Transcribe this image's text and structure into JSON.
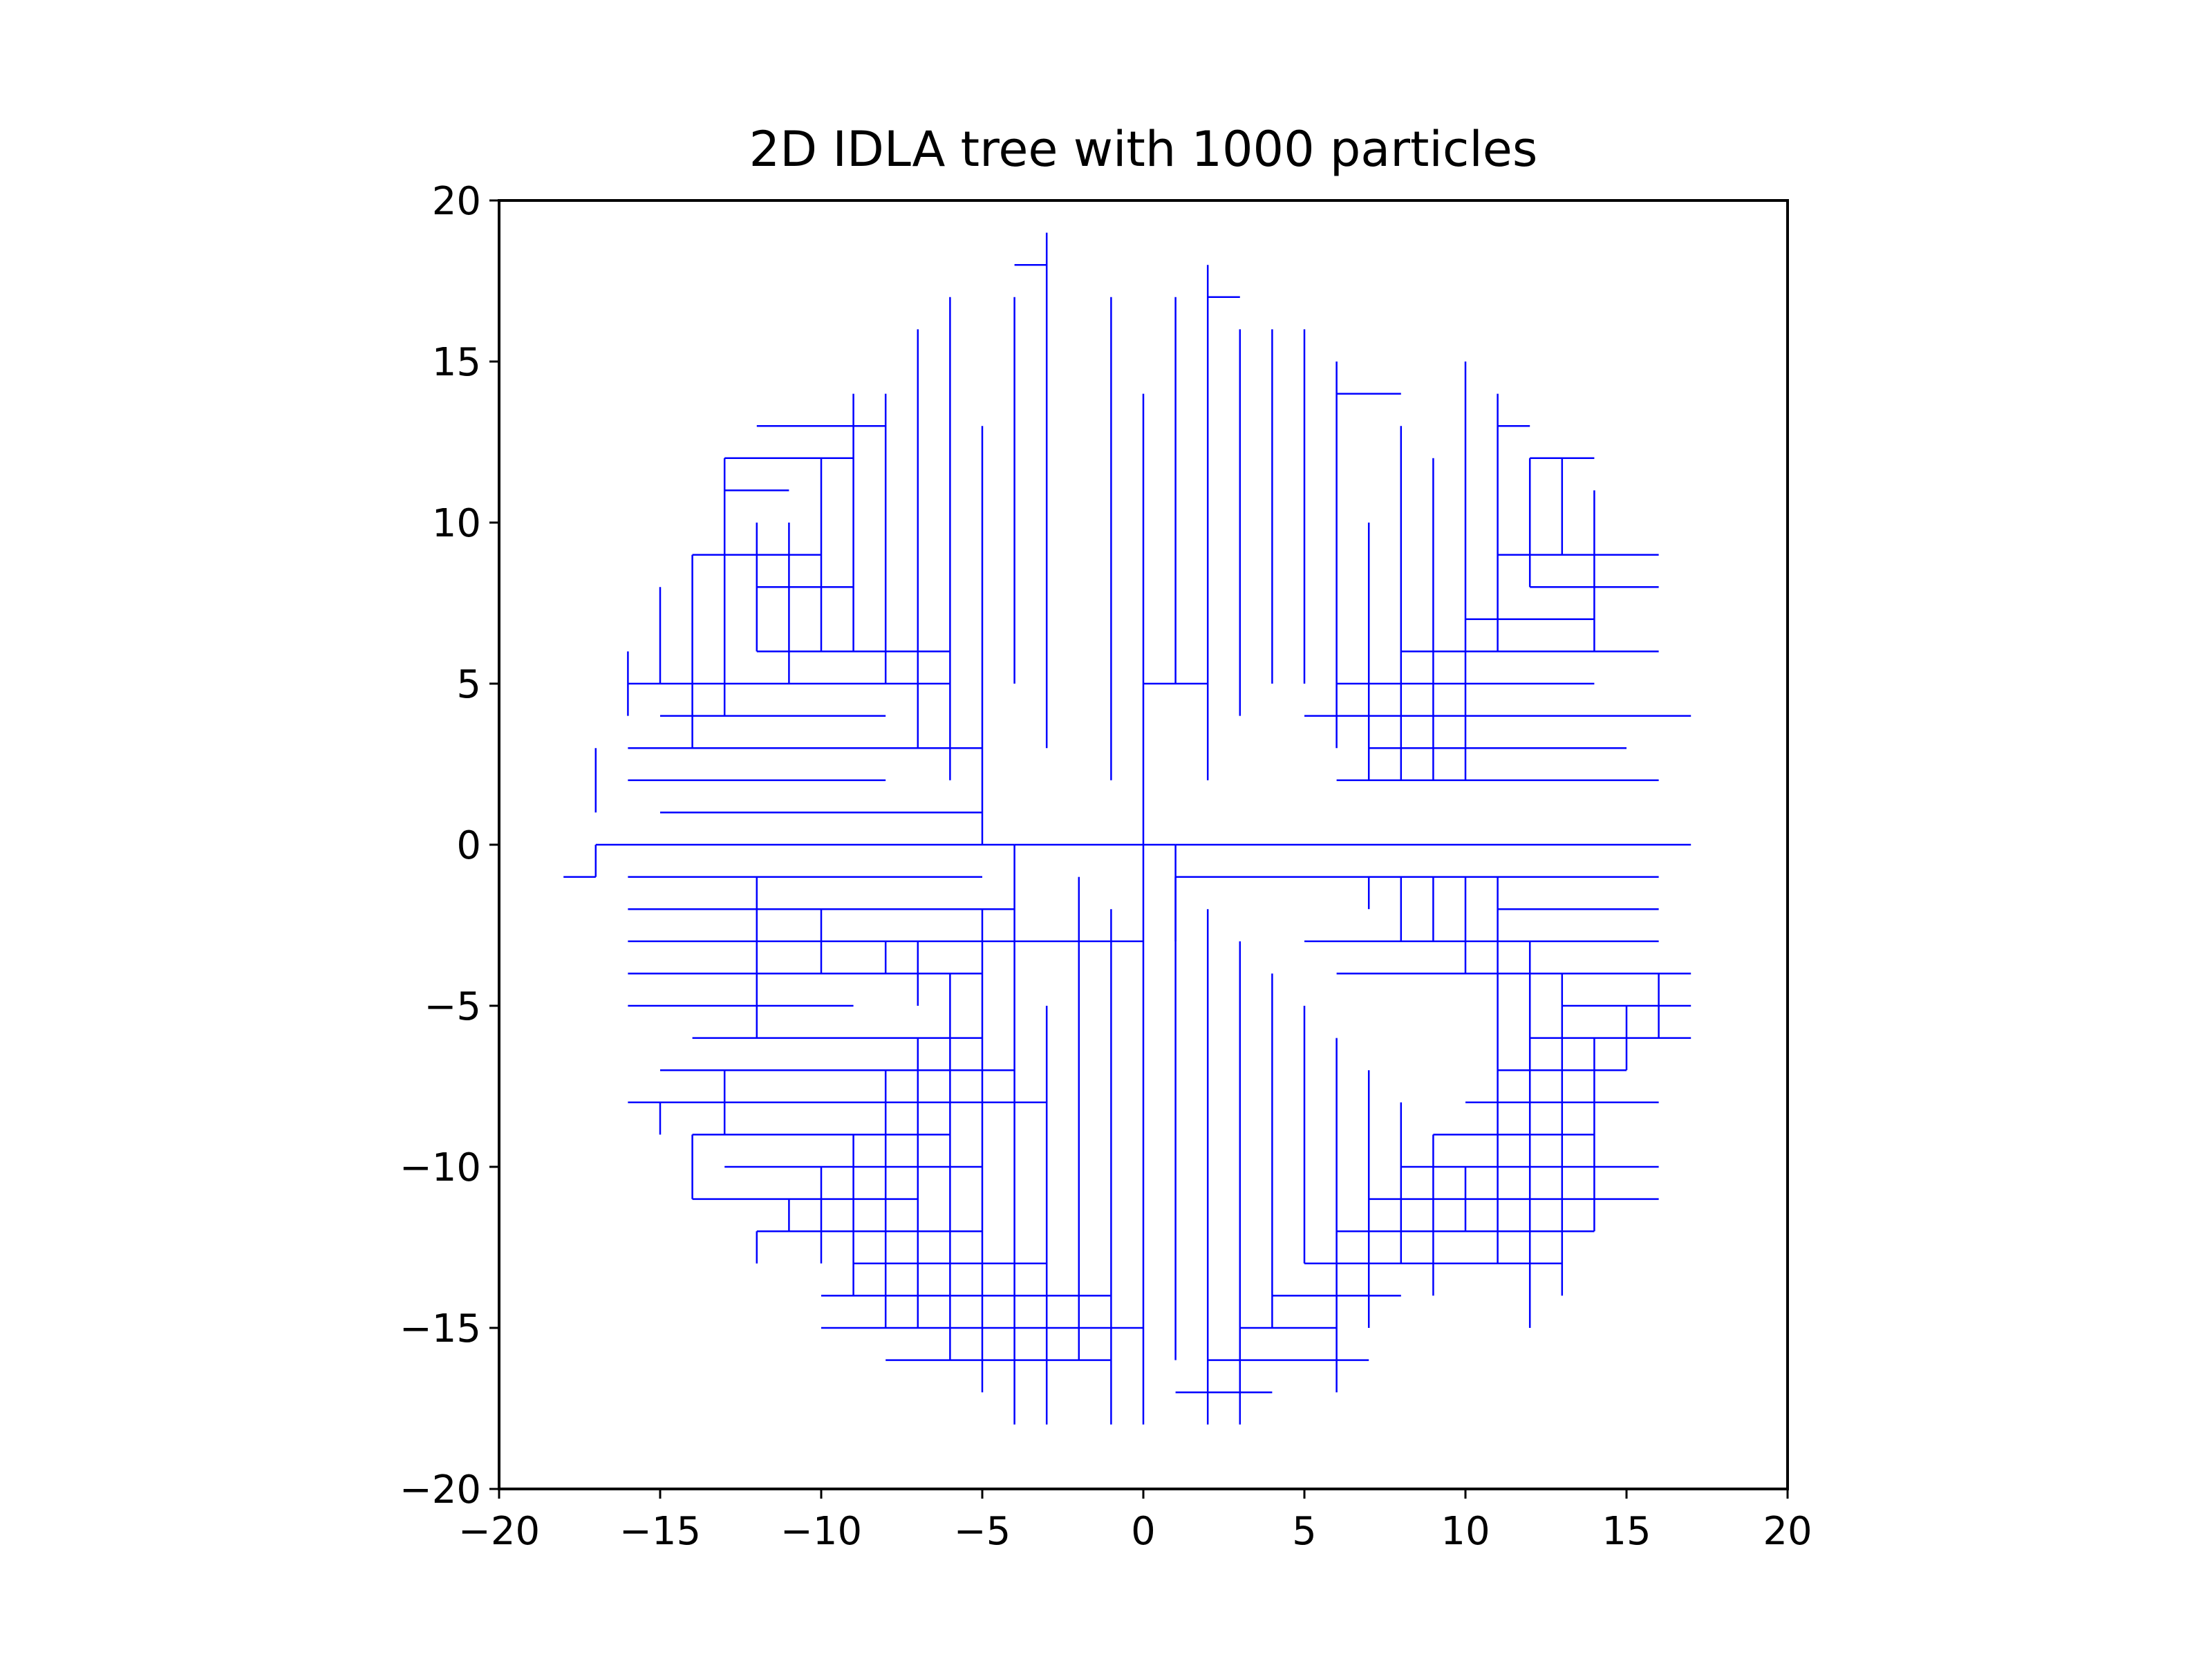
{
  "chart_data": {
    "type": "line",
    "title": "2D IDLA tree with 1000 particles",
    "xlabel": "",
    "ylabel": "",
    "xlim": [
      -20,
      20
    ],
    "ylim": [
      -20,
      20
    ],
    "xticks": [
      -20,
      -15,
      -10,
      -5,
      0,
      5,
      10,
      15,
      20
    ],
    "yticks": [
      -20,
      -15,
      -10,
      -5,
      0,
      5,
      10,
      15,
      20
    ],
    "xtick_labels": [
      "−20",
      "−15",
      "−10",
      "−5",
      "0",
      "5",
      "10",
      "15",
      "20"
    ],
    "ytick_labels": [
      "−20",
      "−15",
      "−10",
      "−5",
      "0",
      "5",
      "10",
      "15",
      "20"
    ],
    "grid": false,
    "legend": "none",
    "edge_color": "#0000ff",
    "series": [
      {
        "values_note": "tree edges between lattice points [x1,y1,x2,y2]",
        "edges": [
          [
            0,
            0,
            0,
            -18
          ],
          [
            0,
            0,
            -4,
            0
          ],
          [
            0,
            0,
            0,
            14
          ],
          [
            0,
            0,
            1,
            0
          ],
          [
            1,
            0,
            1,
            -3
          ],
          [
            1,
            0,
            17,
            0
          ],
          [
            0,
            -3,
            -5,
            -3
          ],
          [
            -4,
            0,
            -4,
            -18
          ],
          [
            -3,
            -5,
            -3,
            -18
          ],
          [
            -5,
            0,
            -5,
            13
          ],
          [
            -4,
            5,
            -4,
            17
          ],
          [
            -3,
            3,
            -3,
            19
          ],
          [
            -3,
            18,
            -4,
            18
          ],
          [
            -1,
            2,
            -1,
            17
          ],
          [
            0,
            5,
            2,
            5
          ],
          [
            1,
            5,
            1,
            17
          ],
          [
            2,
            2,
            2,
            18
          ],
          [
            2,
            17,
            3,
            17
          ],
          [
            3,
            4,
            3,
            16
          ],
          [
            4,
            5,
            4,
            16
          ],
          [
            5,
            5,
            5,
            16
          ],
          [
            6,
            3,
            6,
            15
          ],
          [
            6,
            14,
            8,
            14
          ],
          [
            7,
            2,
            7,
            10
          ],
          [
            8,
            2,
            8,
            13
          ],
          [
            9,
            2,
            9,
            12
          ],
          [
            10,
            2,
            10,
            15
          ],
          [
            11,
            6,
            11,
            14
          ],
          [
            12,
            8,
            12,
            12
          ],
          [
            12,
            12,
            14,
            12
          ],
          [
            13,
            9,
            13,
            12
          ],
          [
            11,
            9,
            16,
            9
          ],
          [
            12,
            7,
            14,
            7
          ],
          [
            14,
            6,
            14,
            11
          ],
          [
            12,
            8,
            16,
            8
          ],
          [
            -6,
            2,
            -6,
            17
          ],
          [
            -7,
            3,
            -7,
            16
          ],
          [
            -8,
            5,
            -8,
            14
          ],
          [
            -9,
            6,
            -9,
            14
          ],
          [
            -10,
            6,
            -10,
            12
          ],
          [
            -11,
            5,
            -11,
            10
          ],
          [
            -12,
            6,
            -12,
            10
          ],
          [
            -13,
            4,
            -13,
            12
          ],
          [
            -14,
            3,
            -14,
            9
          ],
          [
            -15,
            5,
            -15,
            8
          ],
          [
            -16,
            4,
            -16,
            6
          ],
          [
            -17,
            1,
            -17,
            3
          ],
          [
            -18,
            -1,
            -17,
            -1
          ],
          [
            -17,
            -1,
            -17,
            0
          ],
          [
            -17,
            0,
            -4,
            0
          ],
          [
            -16,
            3,
            -5,
            3
          ],
          [
            -16,
            5,
            -6,
            5
          ],
          [
            -15,
            4,
            -8,
            4
          ],
          [
            -12,
            6,
            -6,
            6
          ],
          [
            -12,
            8,
            -9,
            8
          ],
          [
            -14,
            9,
            -10,
            9
          ],
          [
            -13,
            11,
            -11,
            11
          ],
          [
            -13,
            12,
            -9,
            12
          ],
          [
            -12,
            13,
            -8,
            13
          ],
          [
            -16,
            2,
            -8,
            2
          ],
          [
            -15,
            1,
            -5,
            1
          ],
          [
            -16,
            -1,
            -5,
            -1
          ],
          [
            -16,
            -2,
            -4,
            -2
          ],
          [
            -16,
            -3,
            -5,
            -3
          ],
          [
            -16,
            -4,
            -5,
            -4
          ],
          [
            -16,
            -5,
            -9,
            -5
          ],
          [
            -14,
            -6,
            -5,
            -6
          ],
          [
            -15,
            -7,
            -4,
            -7
          ],
          [
            -16,
            -8,
            -3,
            -8
          ],
          [
            -14,
            -9,
            -6,
            -9
          ],
          [
            -13,
            -10,
            -5,
            -10
          ],
          [
            -14,
            -11,
            -7,
            -11
          ],
          [
            -12,
            -12,
            -5,
            -12
          ],
          [
            -9,
            -13,
            -3,
            -13
          ],
          [
            -10,
            -14,
            -1,
            -14
          ],
          [
            -10,
            -15,
            0,
            -15
          ],
          [
            -8,
            -16,
            -1,
            -16
          ],
          [
            1,
            -17,
            4,
            -17
          ],
          [
            2,
            -16,
            7,
            -16
          ],
          [
            3,
            -15,
            6,
            -15
          ],
          [
            4,
            -14,
            8,
            -14
          ],
          [
            5,
            -13,
            13,
            -13
          ],
          [
            6,
            -12,
            14,
            -12
          ],
          [
            7,
            -11,
            16,
            -11
          ],
          [
            8,
            -10,
            16,
            -10
          ],
          [
            9,
            -9,
            14,
            -9
          ],
          [
            10,
            -8,
            16,
            -8
          ],
          [
            11,
            -7,
            15,
            -7
          ],
          [
            12,
            -6,
            17,
            -6
          ],
          [
            13,
            -5,
            17,
            -5
          ],
          [
            6,
            -4,
            17,
            -4
          ],
          [
            5,
            -3,
            16,
            -3
          ],
          [
            11,
            -2,
            16,
            -2
          ],
          [
            1,
            -1,
            16,
            -1
          ],
          [
            6,
            2,
            16,
            2
          ],
          [
            7,
            3,
            15,
            3
          ],
          [
            5,
            4,
            17,
            4
          ],
          [
            6,
            5,
            14,
            5
          ],
          [
            8,
            6,
            16,
            6
          ],
          [
            10,
            7,
            14,
            7
          ],
          [
            11,
            13,
            12,
            13
          ],
          [
            11,
            -1,
            11,
            -13
          ],
          [
            12,
            -3,
            12,
            -15
          ],
          [
            13,
            -4,
            13,
            -14
          ],
          [
            14,
            -6,
            14,
            -12
          ],
          [
            15,
            -5,
            15,
            -7
          ],
          [
            16,
            -4,
            16,
            -6
          ],
          [
            -2,
            -1,
            -2,
            -16
          ],
          [
            -1,
            -2,
            -1,
            -18
          ],
          [
            1,
            -1,
            1,
            -16
          ],
          [
            2,
            -2,
            2,
            -18
          ],
          [
            3,
            -3,
            3,
            -18
          ],
          [
            4,
            -4,
            4,
            -15
          ],
          [
            5,
            -5,
            5,
            -13
          ],
          [
            6,
            -6,
            6,
            -17
          ],
          [
            7,
            -7,
            7,
            -15
          ],
          [
            8,
            -8,
            8,
            -13
          ],
          [
            9,
            -9,
            9,
            -14
          ],
          [
            10,
            -10,
            10,
            -12
          ],
          [
            -5,
            -2,
            -5,
            -17
          ],
          [
            -6,
            -4,
            -6,
            -16
          ],
          [
            -7,
            -6,
            -7,
            -15
          ],
          [
            -8,
            -7,
            -8,
            -15
          ],
          [
            -9,
            -9,
            -9,
            -14
          ],
          [
            -10,
            -10,
            -10,
            -13
          ],
          [
            -11,
            -11,
            -11,
            -12
          ],
          [
            -12,
            -12,
            -12,
            -13
          ],
          [
            -13,
            -7,
            -13,
            -9
          ],
          [
            -14,
            -9,
            -14,
            -11
          ],
          [
            -15,
            -8,
            -15,
            -9
          ],
          [
            -10,
            -2,
            -10,
            -4
          ],
          [
            -12,
            -1,
            -12,
            -6
          ],
          [
            -8,
            -3,
            -8,
            -4
          ],
          [
            -7,
            -3,
            -7,
            -5
          ],
          [
            7,
            -2,
            7,
            -1
          ],
          [
            8,
            -1,
            8,
            -3
          ],
          [
            9,
            -1,
            9,
            -3
          ],
          [
            10,
            -1,
            10,
            -4
          ]
        ]
      }
    ]
  }
}
